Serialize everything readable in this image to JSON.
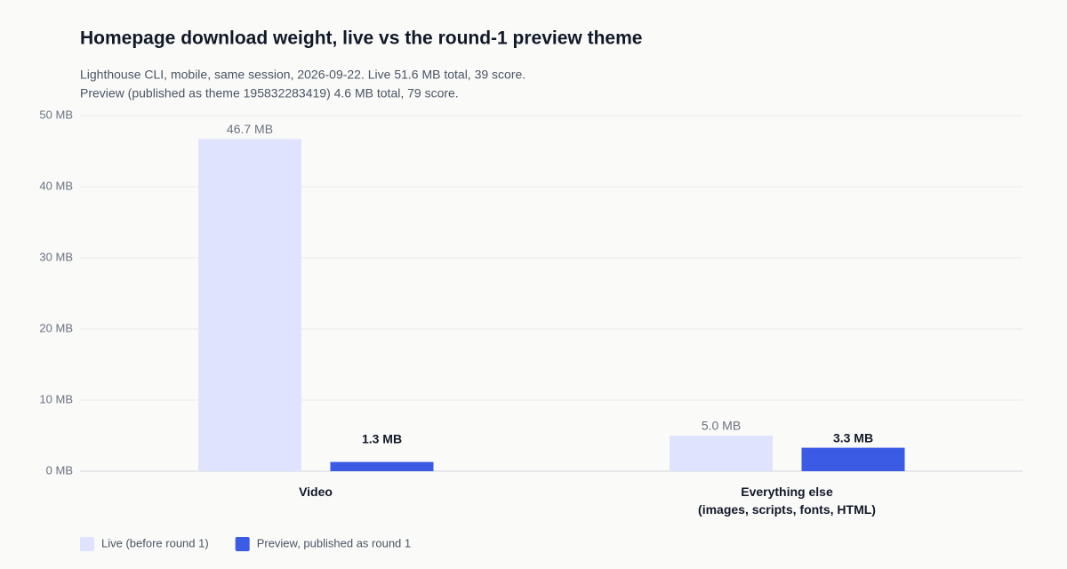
{
  "chart_data": {
    "type": "bar",
    "title": "Homepage download weight, live vs the round-1 preview theme",
    "subtitle": [
      "Lighthouse CLI, mobile, same session, 2026-09-22. Live 51.6 MB total, 39 score.",
      "Preview (published as theme 195832283419) 4.6 MB total, 79 score."
    ],
    "categories": [
      "Video",
      "Everything else\n(images, scripts, fonts, HTML)"
    ],
    "series": [
      {
        "name": "Live (before round 1)",
        "color": "#e0e3fd",
        "values": [
          46.7,
          5.0
        ],
        "value_labels": [
          "46.7 MB",
          "5.0 MB"
        ]
      },
      {
        "name": "Preview, published as round 1",
        "color": "#3b5be5",
        "values": [
          1.3,
          3.3
        ],
        "value_labels": [
          "1.3 MB",
          "3.3 MB"
        ]
      }
    ],
    "ylim": [
      0,
      50
    ],
    "yticks": [
      {
        "value": 0,
        "label": "0 MB"
      },
      {
        "value": 10,
        "label": "10 MB"
      },
      {
        "value": 20,
        "label": "20 MB"
      },
      {
        "value": 30,
        "label": "30 MB"
      },
      {
        "value": 40,
        "label": "40 MB"
      },
      {
        "value": 50,
        "label": "50 MB"
      }
    ],
    "grid": true
  }
}
